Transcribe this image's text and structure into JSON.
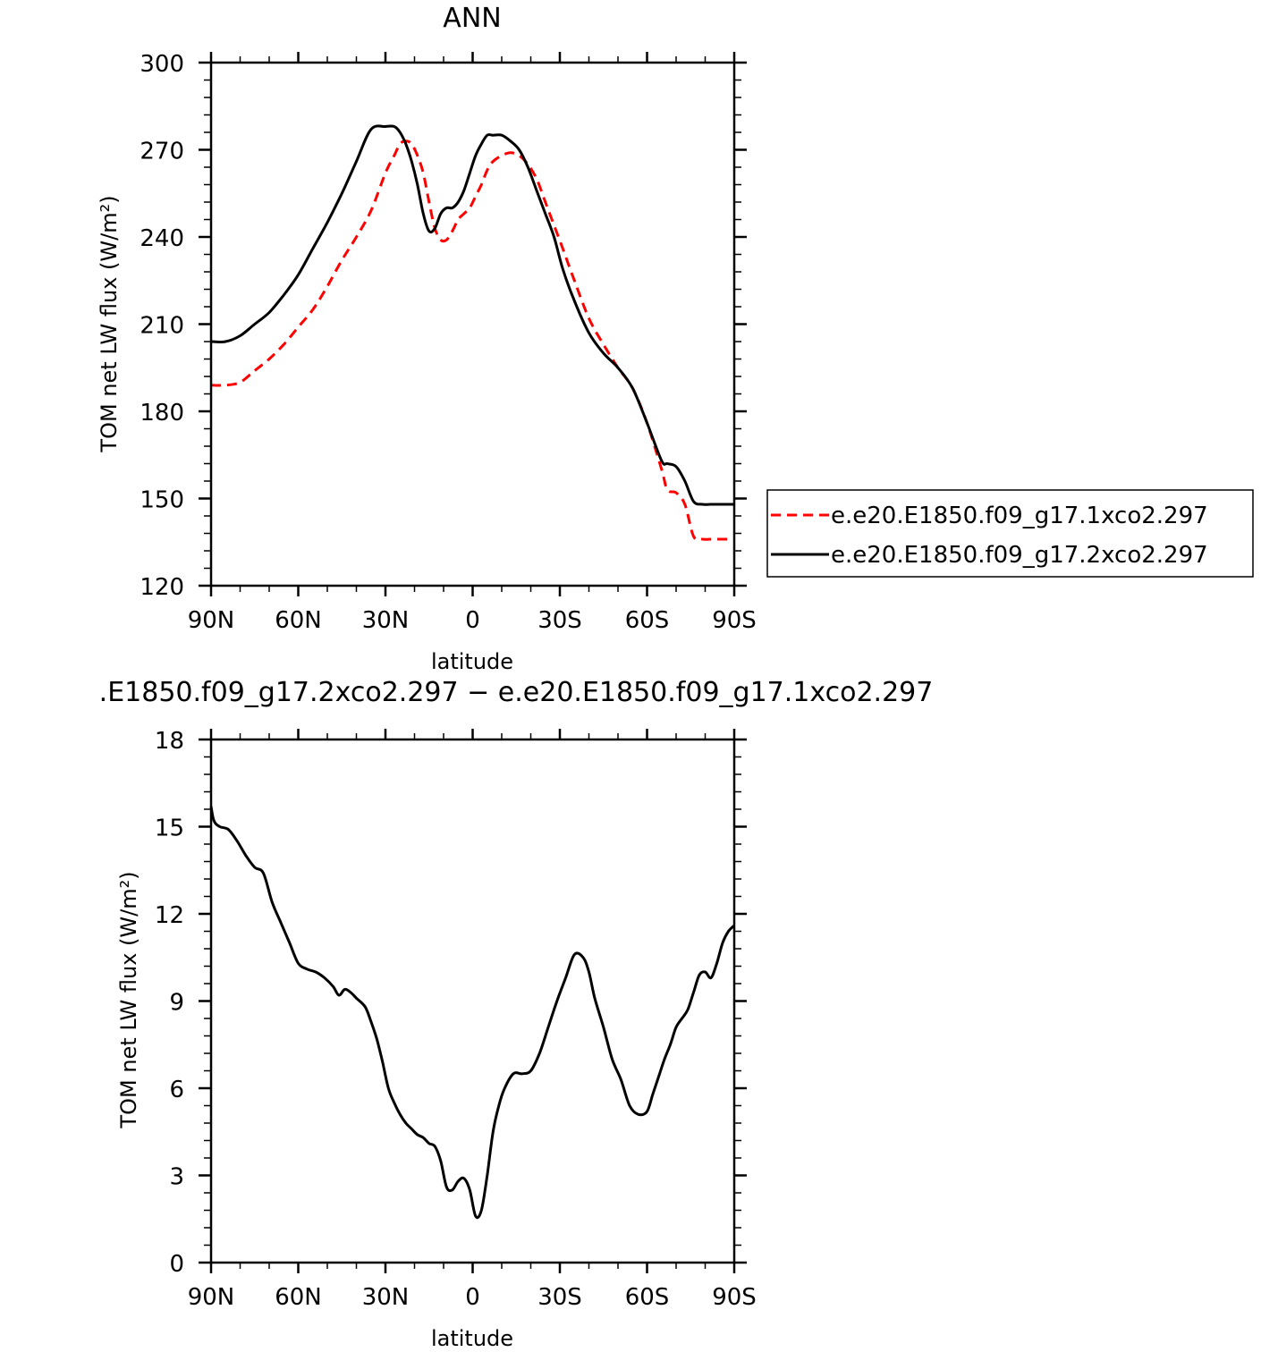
{
  "chart_data": [
    {
      "type": "line",
      "title": "ANN",
      "xlabel": "latitude",
      "ylabel": "TOM net LW flux (W/m²)",
      "xlim": [
        -90,
        90
      ],
      "ylim": [
        120,
        300
      ],
      "x_ticks": [
        -90,
        -60,
        -30,
        0,
        30,
        60,
        90
      ],
      "x_tick_labels": [
        "90N",
        "60N",
        "30N",
        "0",
        "30S",
        "60S",
        "90S"
      ],
      "y_ticks": [
        120,
        150,
        180,
        210,
        240,
        270,
        300
      ],
      "y_tick_labels": [
        "120",
        "150",
        "180",
        "210",
        "240",
        "270",
        "300"
      ],
      "legend_position": "right",
      "series": [
        {
          "name": "e.e20.E1850.f09_g17.1xco2.297",
          "color": "#ff0000",
          "dash": "dashed",
          "x": [
            -90,
            -85,
            -80,
            -75,
            -70,
            -65,
            -60,
            -55,
            -50,
            -45,
            -40,
            -35,
            -30,
            -27,
            -25,
            -23,
            -21,
            -19,
            -17,
            -15,
            -13,
            -11,
            -9,
            -7,
            -5,
            -3,
            -1,
            1,
            3,
            5,
            7,
            10,
            13,
            16,
            19,
            22,
            25,
            28,
            31,
            35,
            40,
            45,
            50,
            55,
            60,
            65,
            67,
            70,
            73,
            76,
            79,
            82,
            84,
            86,
            88,
            90
          ],
          "y": [
            189,
            189,
            190,
            194,
            198,
            203,
            209,
            215,
            223,
            232,
            240,
            249,
            262,
            268,
            272,
            273,
            272,
            268,
            262,
            252,
            243,
            239,
            239,
            242,
            246,
            248,
            250,
            254,
            258,
            263,
            266,
            268,
            269,
            268,
            265,
            260,
            252,
            244,
            236,
            225,
            212,
            203,
            195,
            188,
            176,
            160,
            153,
            152,
            148,
            137,
            136,
            136,
            136,
            136,
            136,
            136
          ]
        },
        {
          "name": "e.e20.E1850.f09_g17.2xco2.297",
          "color": "#000000",
          "dash": "solid",
          "x": [
            -90,
            -85,
            -80,
            -75,
            -70,
            -65,
            -60,
            -55,
            -50,
            -45,
            -40,
            -35,
            -30,
            -27,
            -25,
            -23,
            -21,
            -19,
            -17,
            -15,
            -13,
            -11,
            -9,
            -7,
            -5,
            -3,
            -1,
            1,
            3,
            5,
            7,
            10,
            13,
            16,
            19,
            22,
            25,
            28,
            31,
            35,
            40,
            45,
            50,
            55,
            60,
            65,
            67,
            70,
            73,
            76,
            79,
            82,
            84,
            86,
            88,
            90
          ],
          "y": [
            204,
            204,
            206,
            210,
            214,
            220,
            227,
            236,
            245,
            255,
            266,
            277,
            278,
            278,
            276,
            272,
            266,
            258,
            248,
            242,
            243,
            248,
            250,
            250,
            252,
            256,
            262,
            268,
            272,
            275,
            275,
            275,
            273,
            270,
            264,
            256,
            248,
            240,
            229,
            218,
            207,
            200,
            195,
            188,
            176,
            163,
            162,
            161,
            156,
            149,
            148,
            148,
            148,
            148,
            148,
            148
          ]
        }
      ]
    },
    {
      "type": "line",
      "title": ".E1850.f09_g17.2xco2.297 − e.e20.E1850.f09_g17.1xco2.297",
      "xlabel": "latitude",
      "ylabel": "TOM net LW flux (W/m²)",
      "xlim": [
        -90,
        90
      ],
      "ylim": [
        0,
        18
      ],
      "x_ticks": [
        -90,
        -60,
        -30,
        0,
        30,
        60,
        90
      ],
      "x_tick_labels": [
        "90N",
        "60N",
        "30N",
        "0",
        "30S",
        "60S",
        "90S"
      ],
      "y_ticks": [
        0,
        3,
        6,
        9,
        12,
        15,
        18
      ],
      "y_tick_labels": [
        "0",
        "3",
        "6",
        "9",
        "12",
        "15",
        "18"
      ],
      "series": [
        {
          "name": "",
          "color": "#000000",
          "dash": "solid",
          "x": [
            -90,
            -89,
            -87,
            -84,
            -81,
            -78,
            -75,
            -72,
            -69,
            -66,
            -63,
            -60,
            -57,
            -54,
            -51,
            -48,
            -46,
            -44,
            -42,
            -40,
            -37,
            -35,
            -33,
            -31,
            -29,
            -27,
            -25,
            -23,
            -21,
            -19,
            -17,
            -15,
            -13,
            -11,
            -9,
            -7,
            -5,
            -3,
            -1,
            1,
            3,
            5,
            7,
            9,
            11,
            14,
            17,
            20,
            23,
            26,
            29,
            32,
            35,
            38,
            40,
            42,
            45,
            48,
            51,
            54,
            57,
            60,
            62,
            64,
            66,
            68,
            70,
            72,
            74,
            76,
            78,
            80,
            82,
            84,
            86,
            88,
            90
          ],
          "y": [
            15.7,
            15.2,
            15.0,
            14.9,
            14.5,
            14.0,
            13.6,
            13.4,
            12.4,
            11.7,
            11.0,
            10.3,
            10.1,
            10.0,
            9.8,
            9.5,
            9.2,
            9.4,
            9.3,
            9.1,
            8.8,
            8.3,
            7.7,
            6.9,
            6.0,
            5.5,
            5.1,
            4.8,
            4.6,
            4.4,
            4.3,
            4.1,
            4.0,
            3.5,
            2.6,
            2.5,
            2.8,
            2.9,
            2.5,
            1.6,
            1.8,
            3.0,
            4.5,
            5.4,
            6.0,
            6.5,
            6.5,
            6.6,
            7.2,
            8.1,
            9.0,
            9.8,
            10.6,
            10.5,
            10.0,
            9.1,
            8.1,
            7.0,
            6.3,
            5.4,
            5.1,
            5.2,
            5.8,
            6.4,
            7.0,
            7.5,
            8.1,
            8.4,
            8.7,
            9.3,
            9.9,
            10.0,
            9.8,
            10.3,
            11.0,
            11.4,
            11.6
          ]
        }
      ]
    }
  ]
}
